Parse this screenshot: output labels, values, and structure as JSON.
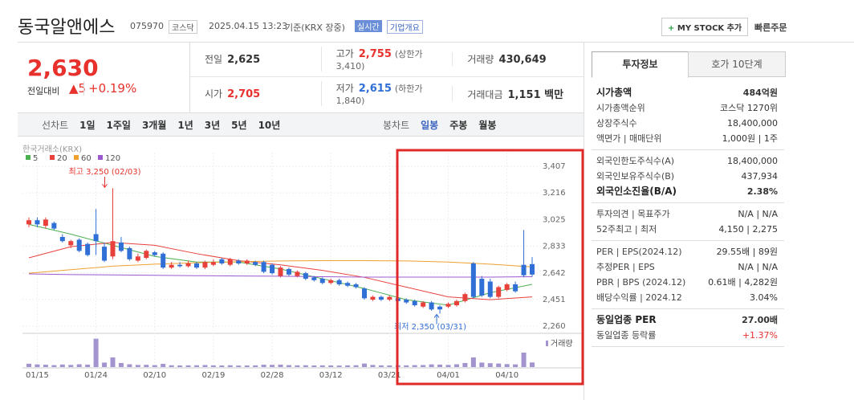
{
  "header": {
    "title": "동국알앤에스",
    "code": "075970",
    "market": "코스닥",
    "datetime": "2025.04.15 13:23",
    "basis": "기준(KRX 장중)",
    "realtime": "실시간",
    "company": "기업개요",
    "mystock": "MY STOCK 추가",
    "quick": "빠른주문"
  },
  "price": {
    "current": "2,630",
    "change_label": "전일대비",
    "change": "5",
    "pct": "+0.19%"
  },
  "summary": [
    [
      {
        "label": "전일",
        "value": "2,625"
      },
      {
        "label": "고가",
        "value": "2,755",
        "note": "(상한가 3,410)"
      },
      {
        "label": "거래량",
        "value": "430,649"
      }
    ],
    [
      {
        "label": "시가",
        "value": "2,705"
      },
      {
        "label": "저가",
        "value": "2,615",
        "note": "(하한가 1,840)"
      },
      {
        "label": "거래대금",
        "value": "1,151 백만"
      }
    ]
  ],
  "periods": {
    "left": [
      "선차트",
      "1일",
      "1주일",
      "3개월",
      "1년",
      "3년",
      "5년",
      "10년"
    ],
    "right": [
      "봉차트",
      "일봉",
      "주봉",
      "월봉"
    ]
  },
  "chart_data": {
    "type": "candlestick",
    "source": "한국거래소(KRX)",
    "up_color": "#e8413c",
    "down_color": "#2f6fd6",
    "volume_color": "#a393cf",
    "categories": [
      null,
      "01/15",
      null,
      null,
      null,
      null,
      null,
      null,
      "01/24",
      null,
      null,
      null,
      null,
      null,
      null,
      "02/10",
      null,
      null,
      null,
      null,
      null,
      null,
      "02/19",
      null,
      null,
      null,
      null,
      null,
      null,
      "02/28",
      null,
      null,
      null,
      null,
      null,
      null,
      "03/12",
      null,
      null,
      null,
      null,
      null,
      null,
      "03/21",
      null,
      null,
      null,
      null,
      null,
      null,
      "04/01",
      null,
      null,
      null,
      null,
      null,
      null,
      "04/10",
      null,
      null,
      null
    ],
    "candles": [
      [
        2990,
        3040,
        2970,
        3020
      ],
      [
        3020,
        3040,
        2970,
        2990
      ],
      [
        2980,
        3040,
        2960,
        3025
      ],
      [
        3000,
        3010,
        2950,
        2960
      ],
      [
        2900,
        2920,
        2860,
        2870
      ],
      [
        2840,
        2880,
        2820,
        2870
      ],
      [
        2880,
        2890,
        2790,
        2800
      ],
      [
        2850,
        2860,
        2760,
        2770
      ],
      [
        2920,
        3100,
        2770,
        2870
      ],
      [
        2830,
        2860,
        2720,
        2730
      ],
      [
        2760,
        3250,
        2740,
        2870
      ],
      [
        2860,
        2900,
        2790,
        2800
      ],
      [
        2820,
        2830,
        2730,
        2740
      ],
      [
        2730,
        2780,
        2720,
        2760
      ],
      [
        2750,
        2810,
        2740,
        2800
      ],
      [
        2790,
        2800,
        2760,
        2770
      ],
      [
        2780,
        2790,
        2670,
        2680
      ],
      [
        2680,
        2720,
        2670,
        2700
      ],
      [
        2700,
        2720,
        2680,
        2690
      ],
      [
        2690,
        2730,
        2680,
        2710
      ],
      [
        2710,
        2720,
        2670,
        2680
      ],
      [
        2680,
        2730,
        2670,
        2720
      ],
      [
        2700,
        2740,
        2690,
        2720
      ],
      [
        2740,
        2750,
        2700,
        2710
      ],
      [
        2700,
        2750,
        2690,
        2740
      ],
      [
        2730,
        2740,
        2700,
        2710
      ],
      [
        2710,
        2740,
        2700,
        2730
      ],
      [
        2720,
        2730,
        2690,
        2700
      ],
      [
        2720,
        2730,
        2640,
        2650
      ],
      [
        2700,
        2710,
        2630,
        2640
      ],
      [
        2620,
        2690,
        2610,
        2680
      ],
      [
        2670,
        2680,
        2620,
        2630
      ],
      [
        2620,
        2660,
        2610,
        2650
      ],
      [
        2640,
        2650,
        2590,
        2600
      ],
      [
        2610,
        2620,
        2580,
        2590
      ],
      [
        2600,
        2610,
        2560,
        2570
      ],
      [
        2570,
        2600,
        2560,
        2590
      ],
      [
        2590,
        2600,
        2550,
        2560
      ],
      [
        2570,
        2580,
        2540,
        2550
      ],
      [
        2560,
        2570,
        2530,
        2540
      ],
      [
        2530,
        2540,
        2450,
        2460
      ],
      [
        2450,
        2480,
        2440,
        2470
      ],
      [
        2470,
        2480,
        2440,
        2450
      ],
      [
        2450,
        2480,
        2440,
        2470
      ],
      [
        2460,
        2470,
        2430,
        2440
      ],
      [
        2450,
        2460,
        2420,
        2430
      ],
      [
        2440,
        2450,
        2400,
        2410
      ],
      [
        2400,
        2440,
        2390,
        2430
      ],
      [
        2430,
        2440,
        2370,
        2380
      ],
      [
        2400,
        2410,
        2350,
        2380
      ],
      [
        2400,
        2430,
        2390,
        2420
      ],
      [
        2410,
        2450,
        2400,
        2440
      ],
      [
        2440,
        2500,
        2430,
        2490
      ],
      [
        2710,
        2720,
        2460,
        2470
      ],
      [
        2600,
        2620,
        2470,
        2480
      ],
      [
        2580,
        2600,
        2460,
        2470
      ],
      [
        2470,
        2550,
        2460,
        2540
      ],
      [
        2520,
        2570,
        2510,
        2560
      ],
      [
        2560,
        2580,
        2500,
        2510
      ],
      [
        2700,
        2950,
        2610,
        2625
      ],
      [
        2705,
        2755,
        2615,
        2630
      ]
    ],
    "volumes": [
      310000,
      250000,
      220000,
      180000,
      240000,
      200000,
      260000,
      230000,
      2650000,
      420000,
      900000,
      380000,
      260000,
      200000,
      210000,
      180000,
      300000,
      170000,
      150000,
      160000,
      170000,
      190000,
      160000,
      150000,
      170000,
      140000,
      150000,
      160000,
      220000,
      210000,
      230000,
      180000,
      160000,
      170000,
      150000,
      160000,
      150000,
      140000,
      160000,
      170000,
      330000,
      200000,
      160000,
      150000,
      170000,
      160000,
      180000,
      190000,
      250000,
      230000,
      200000,
      260000,
      380000,
      900000,
      420000,
      360000,
      330000,
      280000,
      250000,
      1350000,
      430649
    ],
    "volume_ylim": [
      0,
      3000000
    ],
    "volume_label": "거래량",
    "ma": [
      {
        "name": "5",
        "color": "#4caf50",
        "x": [
          0,
          5,
          10,
          15,
          20,
          25,
          30,
          35,
          40,
          45,
          50,
          55,
          60
        ],
        "values": [
          2990,
          2920,
          2840,
          2760,
          2720,
          2720,
          2670,
          2600,
          2530,
          2450,
          2410,
          2500,
          2560
        ]
      },
      {
        "name": "20",
        "color": "#e8413c",
        "x": [
          0,
          5,
          10,
          15,
          20,
          25,
          30,
          35,
          40,
          45,
          50,
          55,
          60
        ],
        "values": [
          2750,
          2830,
          2860,
          2840,
          2780,
          2730,
          2700,
          2660,
          2610,
          2540,
          2470,
          2450,
          2470
        ]
      },
      {
        "name": "60",
        "color": "#f0a030",
        "x": [
          0,
          5,
          10,
          15,
          20,
          25,
          30,
          35,
          40,
          45,
          50,
          55,
          60
        ],
        "values": [
          2640,
          2665,
          2690,
          2705,
          2715,
          2722,
          2728,
          2730,
          2730,
          2728,
          2720,
          2705,
          2685
        ]
      },
      {
        "name": "120",
        "color": "#9b59d0",
        "x": [
          0,
          5,
          10,
          15,
          20,
          25,
          30,
          35,
          40,
          45,
          50,
          55,
          60
        ],
        "values": [
          2635,
          2630,
          2628,
          2625,
          2622,
          2620,
          2618,
          2615,
          2612,
          2612,
          2612,
          2612,
          2615
        ]
      }
    ],
    "ylim": [
      2220,
      3505
    ],
    "yticks": [
      {
        "value": 3407,
        "label": "3,407"
      },
      {
        "value": 3216,
        "label": "3,216"
      },
      {
        "value": 3025,
        "label": "3,025"
      },
      {
        "value": 2833,
        "label": "2,833"
      },
      {
        "value": 2642,
        "label": "2,642"
      },
      {
        "value": 2451,
        "label": "2,451"
      },
      {
        "value": 2260,
        "label": "2,260"
      }
    ],
    "annotations": {
      "high": "최고 3,250 (02/03)",
      "low": "최저 2,350 (03/31)"
    }
  },
  "panel": {
    "tabs": [
      "투자정보",
      "호가 10단계"
    ],
    "groups": [
      [
        {
          "label": "시가총액",
          "value": "484억원",
          "strong": true
        },
        {
          "label": "시가총액순위",
          "value": "코스닥 1270위"
        },
        {
          "label": "상장주식수",
          "value": "18,400,000"
        },
        {
          "label": "액면가 | 매매단위",
          "value": "1,000원 | 1주"
        }
      ],
      [
        {
          "label": "외국인한도주식수(A)",
          "value": "18,400,000"
        },
        {
          "label": "외국인보유주식수(B)",
          "value": "437,934"
        },
        {
          "label": "외국인소진율(B/A)",
          "value": "2.38%",
          "strong": true
        }
      ],
      [
        {
          "label": "투자의견 | 목표주가",
          "value": "N/A | N/A"
        },
        {
          "label": "52주최고 | 최저",
          "value": "4,150 | 2,275"
        }
      ],
      [
        {
          "label": "PER | EPS(2024.12)",
          "value": "29.55배 | 89원"
        },
        {
          "label": "추정PER | EPS",
          "value": "N/A | N/A"
        },
        {
          "label": "PBR | BPS (2024.12)",
          "value": "0.61배 | 4,282원"
        },
        {
          "label": "배당수익률 | 2024.12",
          "value": "3.04%"
        }
      ],
      [
        {
          "label": "동일업종 PER",
          "value": "27.00배",
          "strong": true
        },
        {
          "label": "동일업종 등락률",
          "value": "+1.37%",
          "red": true
        }
      ]
    ]
  }
}
